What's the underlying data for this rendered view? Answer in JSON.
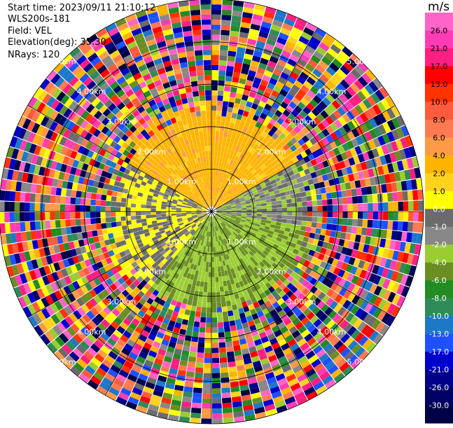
{
  "header": {
    "start_time": "Start time: 2023/09/11 21:10:12",
    "instrument": "WLS200s-181",
    "field": "Field: VEL",
    "elevation": "Elevation(deg): 35.30",
    "nrays": "NRays: 120"
  },
  "chart_data": {
    "type": "heatmap",
    "projection": "polar-ppi",
    "title": "",
    "field": "VEL",
    "elevation_deg": 35.3,
    "nrays": 120,
    "range_rings_km": [
      1.0,
      2.0,
      3.0,
      4.0,
      5.0
    ],
    "ring_labels": {
      "1.0": "1.00km",
      "2.0": "2.00km",
      "3.0": "3.00km",
      "4.0": "4.00km",
      "5.0": "5.00km"
    },
    "max_range_km": 5.0,
    "spokes_deg": [
      0,
      30,
      60,
      90,
      120,
      150
    ],
    "colorbar": {
      "unit": "m/s",
      "ticks": [
        "26.0",
        "21.0",
        "17.0",
        "13.0",
        "10.0",
        "8.0",
        "6.0",
        "4.0",
        "2.0",
        "1.0",
        "0.0",
        "-1.0",
        "-2.0",
        "-4.0",
        "-6.0",
        "-8.0",
        "-10.0",
        "-13.0",
        "-17.0",
        "-21.0",
        "-26.0",
        "-30.0"
      ],
      "colors": [
        "#ff3cb4",
        "#ff1e82",
        "#ff0000",
        "#ff3200",
        "#ff5a3c",
        "#ff7a50",
        "#ff9a46",
        "#ffb400",
        "#ffd21e",
        "#ffff00",
        "#6b6b6b",
        "#888888",
        "#9acd32",
        "#6b8e23",
        "#228b22",
        "#2e8b57",
        "#1e78c8",
        "#1e50ff",
        "#0000cd",
        "#00008b",
        "#000064",
        "#000046"
      ],
      "top_color": "#ff64c8"
    },
    "sectors": [
      {
        "azimuth_from_deg": -60,
        "azimuth_to_deg": 60,
        "max_range_km": 2.3,
        "velocity_ms": 3,
        "description": "orange/yellow positive velocities"
      },
      {
        "azimuth_from_deg": 60,
        "azimuth_to_deg": 100,
        "max_range_km": 2.3,
        "velocity_ms": -1.5,
        "description": "olive/green negative velocities"
      },
      {
        "azimuth_from_deg": 100,
        "azimuth_to_deg": 220,
        "max_range_km": 2.3,
        "velocity_ms": -4,
        "description": "green negative velocities"
      },
      {
        "azimuth_from_deg": 220,
        "azimuth_to_deg": 300,
        "max_range_km": 2.3,
        "velocity_ms": 0,
        "description": "grey near-zero velocities"
      }
    ],
    "noise_beyond_km": 2.6
  }
}
